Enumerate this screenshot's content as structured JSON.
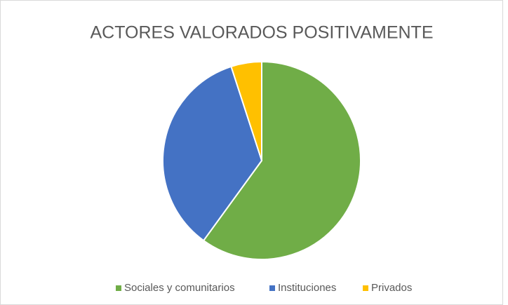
{
  "chart_data": {
    "type": "pie",
    "title": "ACTORES VALORADOS POSITIVAMENTE",
    "categories": [
      "Sociales y comunitarios",
      "Instituciones",
      "Privados"
    ],
    "values": [
      60,
      35,
      5
    ],
    "colors": [
      "#70ad47",
      "#4472c4",
      "#ffc000"
    ],
    "legend": "bottom"
  }
}
